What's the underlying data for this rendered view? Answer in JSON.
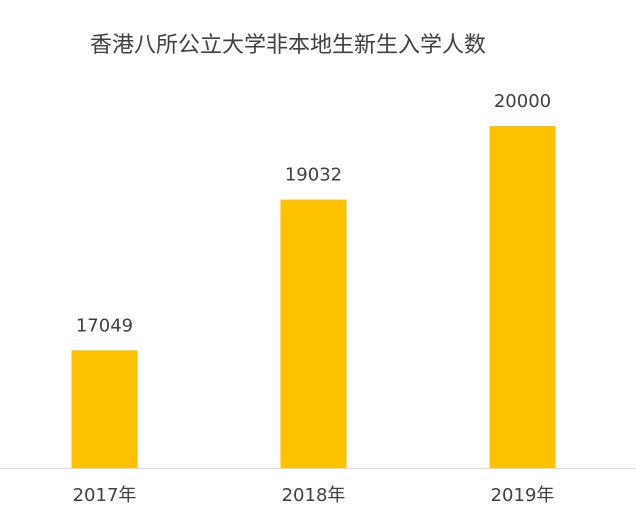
{
  "chart_data": {
    "type": "bar",
    "title": "香港八所公立大学非本地生新生入学人数",
    "categories": [
      "2017年",
      "2018年",
      "2019年"
    ],
    "values": [
      17049,
      19032,
      20000
    ],
    "color": "#ffc000",
    "ylim": [
      15500,
      20500
    ]
  }
}
